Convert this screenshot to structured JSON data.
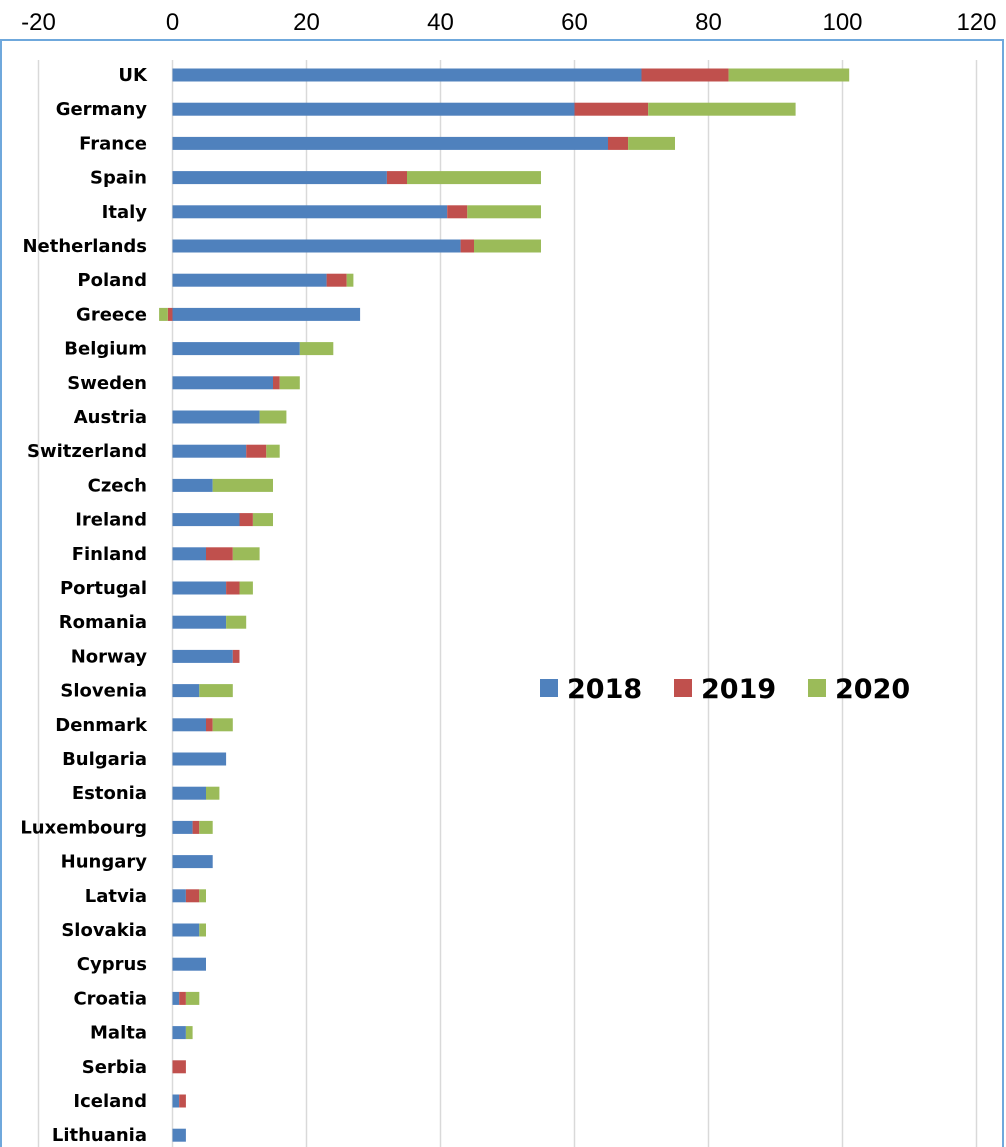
{
  "chart_data": {
    "type": "bar",
    "orientation": "horizontal",
    "stacked": true,
    "categories": [
      "UK",
      "Germany",
      "France",
      "Spain",
      "Italy",
      "Netherlands",
      "Poland",
      "Greece",
      "Belgium",
      "Sweden",
      "Austria",
      "Switzerland",
      "Czech",
      "Ireland",
      "Finland",
      "Portugal",
      "Romania",
      "Norway",
      "Slovenia",
      "Denmark",
      "Bulgaria",
      "Estonia",
      "Luxembourg",
      "Hungary",
      "Latvia",
      "Slovakia",
      "Cyprus",
      "Croatia",
      "Malta",
      "Serbia",
      "Iceland",
      "Lithuania"
    ],
    "series": [
      {
        "name": "2018",
        "color": "#4f81bd",
        "values": [
          70,
          60,
          65,
          32,
          41,
          43,
          23,
          28,
          19,
          15,
          13,
          11,
          6,
          10,
          5,
          8,
          8,
          9,
          4,
          5,
          8,
          5,
          3,
          6,
          2,
          4,
          5,
          1,
          2,
          0,
          1,
          2
        ]
      },
      {
        "name": "2019",
        "color": "#c0504d",
        "values": [
          13,
          11,
          3,
          3,
          3,
          2,
          3,
          -0.7,
          0,
          1,
          0,
          3,
          0,
          2,
          4,
          2,
          0,
          1,
          0,
          1,
          0,
          0,
          1,
          0,
          2,
          0,
          0,
          1,
          0,
          2,
          1,
          0
        ]
      },
      {
        "name": "2020",
        "color": "#9bbb59",
        "values": [
          18,
          22,
          7,
          20,
          11,
          10,
          1,
          -1.3,
          5,
          3,
          4,
          2,
          9,
          3,
          4,
          2,
          3,
          0,
          5,
          3,
          0,
          2,
          2,
          0,
          1,
          1,
          0,
          2,
          1,
          0,
          0,
          0
        ]
      }
    ],
    "xlim": [
      -20,
      120
    ],
    "xticks": [
      "-20",
      "0",
      "20",
      "40",
      "60",
      "80",
      "100",
      "120"
    ],
    "xtick_values": [
      -20,
      0,
      20,
      40,
      60,
      80,
      100,
      120
    ],
    "x_axis_position": "top",
    "grid": true,
    "legend_position": "center-right",
    "title": "",
    "xlabel": "",
    "ylabel": ""
  }
}
